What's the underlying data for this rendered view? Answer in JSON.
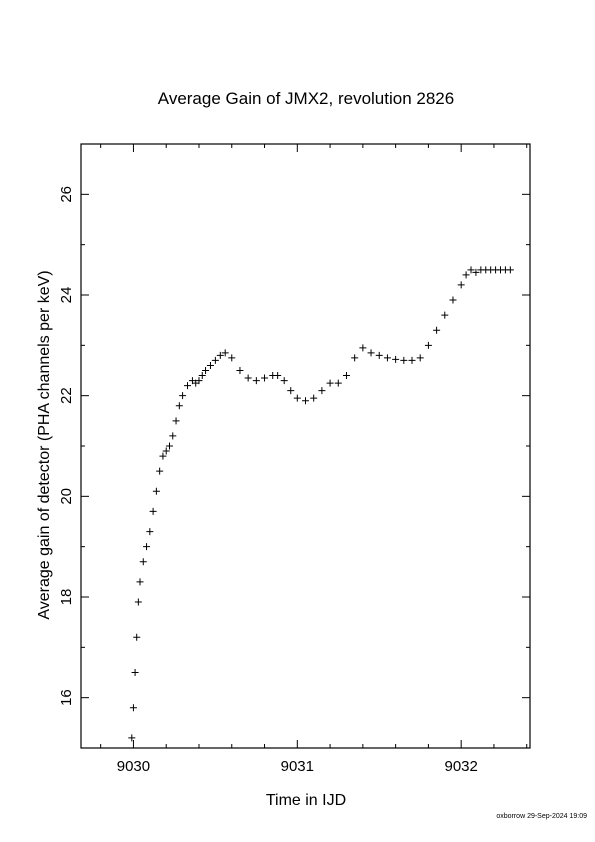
{
  "chart_data": {
    "type": "scatter",
    "title": "Average Gain of JMX2, revolution 2826",
    "xlabel": "Time in IJD",
    "ylabel": "Average gain of detector (PHA channels per keV)",
    "xlim": [
      9029.68,
      9032.42
    ],
    "ylim": [
      15.0,
      27.0
    ],
    "x_ticks": [
      "9030",
      "9031",
      "9032"
    ],
    "x_tick_values": [
      9030,
      9031,
      9032
    ],
    "y_ticks": [
      "16",
      "18",
      "20",
      "22",
      "24",
      "26"
    ],
    "y_tick_values": [
      16,
      18,
      20,
      22,
      24,
      26
    ],
    "grid": false,
    "marker": "plus",
    "color": "#000000",
    "series": [
      {
        "x": [
          9029.99,
          9030.0,
          9030.01,
          9030.02,
          9030.03,
          9030.04,
          9030.06,
          9030.08,
          9030.1,
          9030.12,
          9030.14,
          9030.16,
          9030.18,
          9030.2,
          9030.22,
          9030.24,
          9030.26,
          9030.28,
          9030.3,
          9030.33,
          9030.36,
          9030.38,
          9030.4,
          9030.42,
          9030.44,
          9030.47,
          9030.5,
          9030.53,
          9030.56,
          9030.6,
          9030.65,
          9030.7,
          9030.75,
          9030.8,
          9030.85,
          9030.88,
          9030.92,
          9030.96,
          9031.0,
          9031.05,
          9031.1,
          9031.15,
          9031.2,
          9031.25,
          9031.3,
          9031.35,
          9031.4,
          9031.45,
          9031.5,
          9031.55,
          9031.6,
          9031.65,
          9031.7,
          9031.75,
          9031.8,
          9031.85,
          9031.9,
          9031.95,
          9032.0,
          9032.03,
          9032.06,
          9032.09,
          9032.12,
          9032.15,
          9032.18,
          9032.21,
          9032.24,
          9032.27,
          9032.3
        ],
        "y": [
          15.2,
          15.8,
          16.5,
          17.2,
          17.9,
          18.3,
          18.7,
          19.0,
          19.3,
          19.7,
          20.1,
          20.5,
          20.8,
          20.9,
          21.0,
          21.2,
          21.5,
          21.8,
          22.0,
          22.2,
          22.3,
          22.25,
          22.3,
          22.4,
          22.5,
          22.6,
          22.7,
          22.8,
          22.85,
          22.75,
          22.5,
          22.35,
          22.3,
          22.35,
          22.4,
          22.4,
          22.3,
          22.1,
          21.95,
          21.9,
          21.95,
          22.1,
          22.25,
          22.25,
          22.4,
          22.75,
          22.95,
          22.85,
          22.8,
          22.75,
          22.72,
          22.7,
          22.7,
          22.75,
          23.0,
          23.3,
          23.6,
          23.9,
          24.2,
          24.4,
          24.5,
          24.45,
          24.5,
          24.5,
          24.5,
          24.5,
          24.5,
          24.5,
          24.5
        ]
      }
    ]
  },
  "footer": "oxborrow 29-Sep-2024 19:09"
}
